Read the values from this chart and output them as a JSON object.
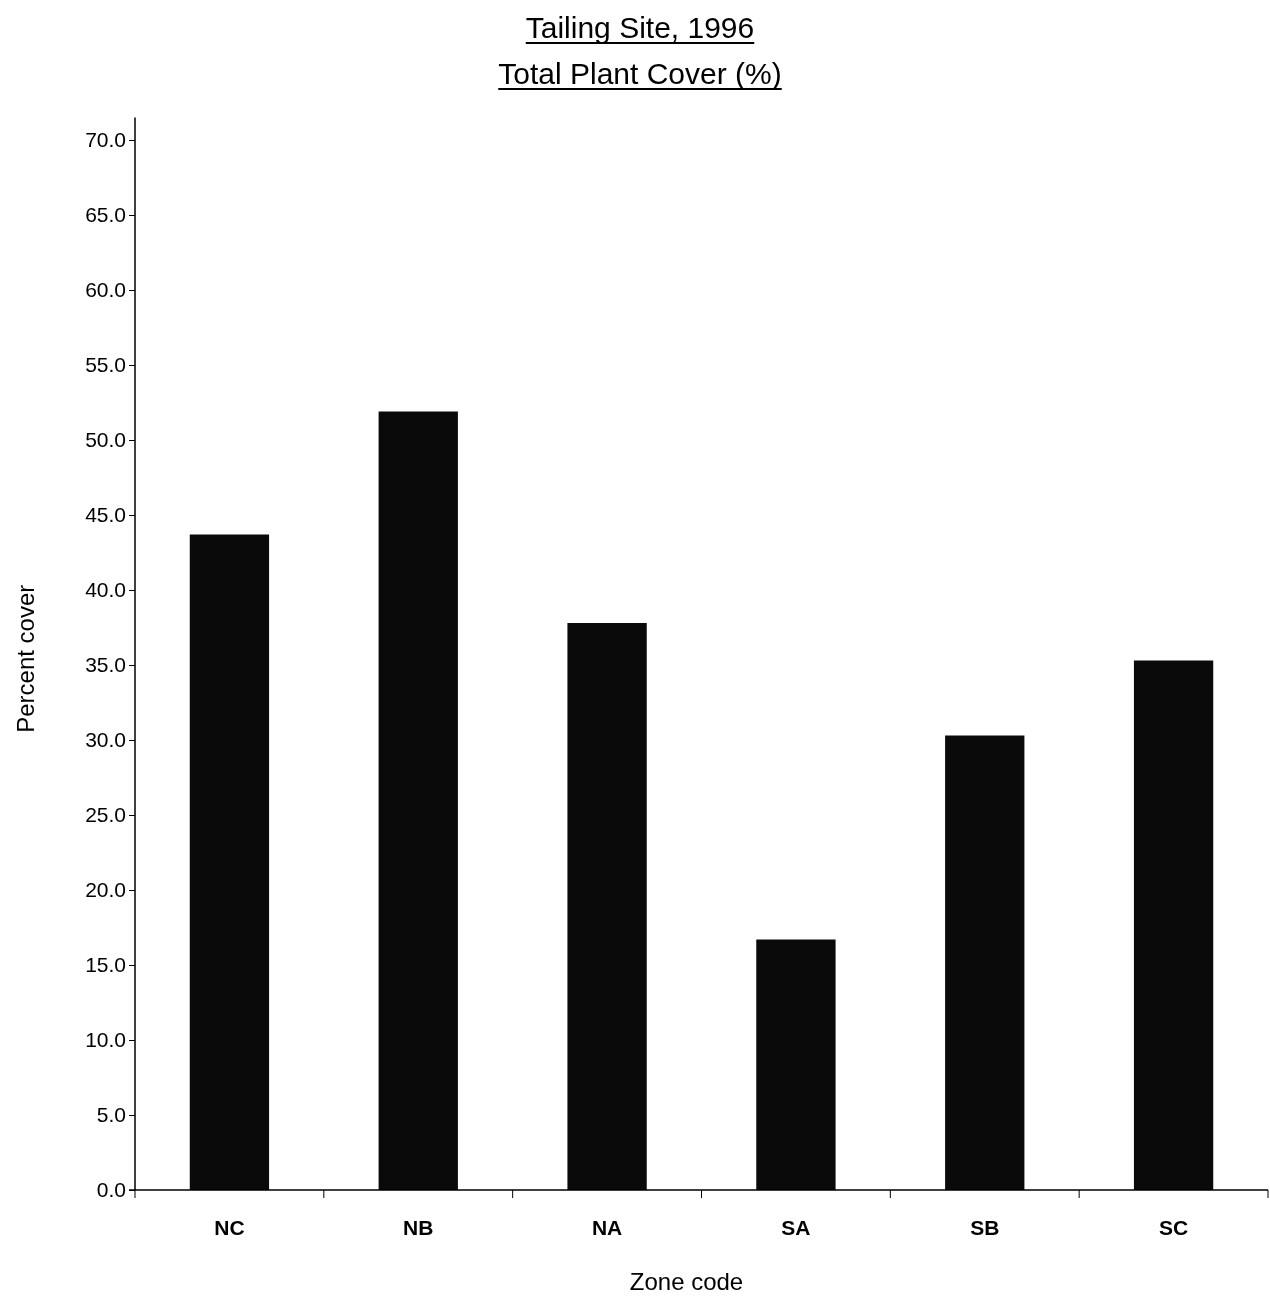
{
  "chart_data": {
    "type": "bar",
    "title": "Tailing Site, 1996",
    "subtitle": "Total Plant Cover (%)",
    "xlabel": "Zone code",
    "ylabel": "Percent cover",
    "categories": [
      "NC",
      "NB",
      "NA",
      "SA",
      "SB",
      "SC"
    ],
    "values": [
      43.7,
      51.9,
      37.8,
      16.7,
      30.3,
      35.3
    ],
    "color": "#0a0a0a",
    "ylim": [
      0,
      71.5
    ],
    "yticks": [
      {
        "value": 0,
        "label": "0.0"
      },
      {
        "value": 5,
        "label": "5.0"
      },
      {
        "value": 10,
        "label": "10.0"
      },
      {
        "value": 15,
        "label": "15.0"
      },
      {
        "value": 20,
        "label": "20.0"
      },
      {
        "value": 25,
        "label": "25.0"
      },
      {
        "value": 30,
        "label": "30.0"
      },
      {
        "value": 35,
        "label": "35.0"
      },
      {
        "value": 40,
        "label": "40.0"
      },
      {
        "value": 45,
        "label": "45.0"
      },
      {
        "value": 50,
        "label": "50.0"
      },
      {
        "value": 55,
        "label": "55.0"
      },
      {
        "value": 60,
        "label": "60.0"
      },
      {
        "value": 65,
        "label": "65.0"
      },
      {
        "value": 70,
        "label": "70.0"
      }
    ],
    "grid": false
  }
}
